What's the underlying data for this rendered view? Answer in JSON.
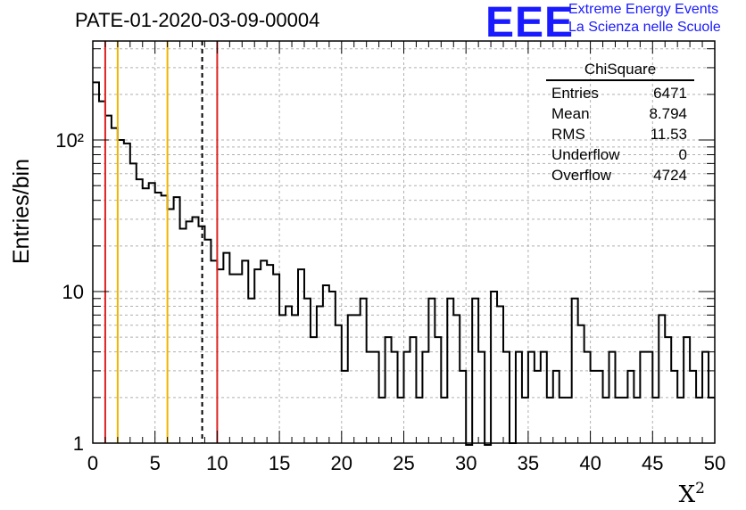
{
  "title": "PATE-01-2020-03-09-00004",
  "logo": {
    "mark": "EEE",
    "line1": "Extreme Energy Events",
    "line2": "La Scienza nelle Scuole",
    "color": "#1a1aff"
  },
  "stats": {
    "header": "ChiSquare",
    "rows": [
      {
        "label": "Entries",
        "value": "6471"
      },
      {
        "label": "Mean",
        "value": "8.794"
      },
      {
        "label": "RMS",
        "value": "11.53"
      },
      {
        "label": "Underflow",
        "value": "0"
      },
      {
        "label": "Overflow",
        "value": "4724"
      }
    ]
  },
  "chart_data": {
    "type": "histogram",
    "xlabel": "X²",
    "ylabel": "Entries/bin",
    "xlim": [
      0,
      50
    ],
    "ylim": [
      1,
      450
    ],
    "yscale": "log",
    "grid": true,
    "bin_width": 0.5,
    "x_ticks": [
      "0",
      "5",
      "10",
      "15",
      "20",
      "25",
      "30",
      "35",
      "40",
      "45",
      "50"
    ],
    "y_ticks": [
      {
        "value": 1,
        "label": "1"
      },
      {
        "value": 10,
        "label": "10"
      },
      {
        "value": 100,
        "label": "10²"
      }
    ],
    "values": [
      240,
      180,
      145,
      120,
      100,
      95,
      70,
      55,
      48,
      52,
      45,
      43,
      35,
      42,
      26,
      29,
      31,
      27,
      22,
      16,
      14,
      18,
      13,
      13,
      16,
      9,
      14,
      16,
      15,
      13,
      7,
      8,
      7,
      14,
      9,
      5,
      8,
      11,
      10,
      6,
      3,
      7,
      7,
      9,
      4,
      4,
      2,
      5,
      4,
      2,
      4,
      5,
      2,
      4,
      9,
      5,
      2,
      9,
      7,
      3,
      0,
      9,
      4,
      0,
      10,
      8,
      4,
      1,
      4,
      2,
      4,
      3,
      4,
      2,
      3,
      2,
      2,
      9,
      6,
      4,
      3,
      3,
      2,
      4,
      2,
      2,
      3,
      2,
      4,
      4,
      2,
      7,
      5,
      3,
      2,
      5,
      3,
      2,
      4,
      2
    ],
    "vertical_lines": [
      {
        "x": 1,
        "color": "#dd2222",
        "style": "solid"
      },
      {
        "x": 2,
        "color": "#f0b400",
        "style": "solid"
      },
      {
        "x": 6,
        "color": "#f0b400",
        "style": "solid"
      },
      {
        "x": 8.794,
        "color": "#000000",
        "style": "dashed"
      },
      {
        "x": 10,
        "color": "#dd2222",
        "style": "solid"
      }
    ]
  }
}
